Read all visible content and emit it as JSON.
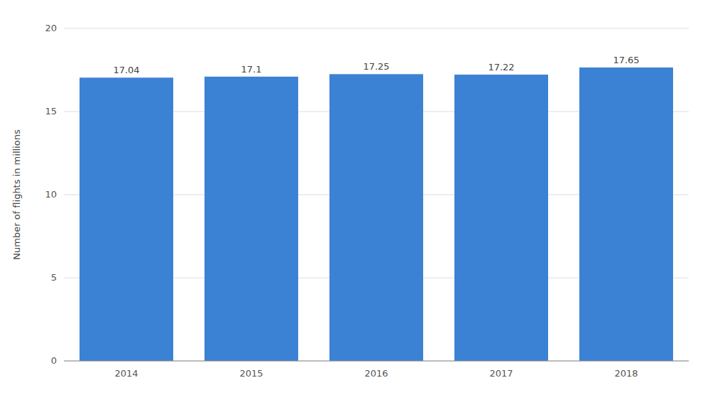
{
  "chart_data": {
    "type": "bar",
    "categories": [
      "2014",
      "2015",
      "2016",
      "2017",
      "2018"
    ],
    "values": [
      17.04,
      17.1,
      17.25,
      17.22,
      17.65
    ],
    "color": "#3c82d4",
    "ylabel": "Number of flights in millions",
    "ylim": [
      0,
      20
    ],
    "yticks": [
      0,
      5,
      10,
      15,
      20
    ],
    "grid": true,
    "data_labels": true
  }
}
